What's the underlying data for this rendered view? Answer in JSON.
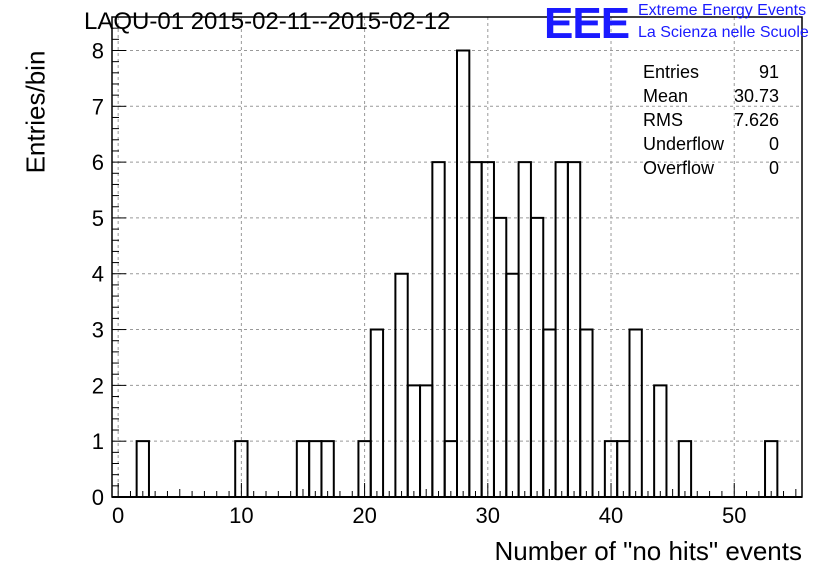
{
  "title": "LAQU-01 2015-02-11--2015-02-12",
  "logo": {
    "mark": "EEE",
    "line1": "Extreme Energy Events",
    "line2": "La Scienza nelle Scuole",
    "color": "#1a1aff"
  },
  "stats": {
    "rows": [
      {
        "label": "Entries",
        "value": "91"
      },
      {
        "label": "Mean",
        "value": "30.73"
      },
      {
        "label": "RMS",
        "value": "7.626"
      },
      {
        "label": "Underflow",
        "value": "0"
      },
      {
        "label": "Overflow",
        "value": "0"
      }
    ]
  },
  "chart_data": {
    "type": "bar",
    "histogram": true,
    "title": "LAQU-01 2015-02-11--2015-02-12",
    "xlabel": "Number of \"no hits\" events",
    "ylabel": "Entries/bin",
    "xlim": [
      -0.5,
      55.5
    ],
    "ylim": [
      0,
      8.6
    ],
    "xticks": [
      0,
      10,
      20,
      30,
      40,
      50
    ],
    "yticks": [
      0,
      1,
      2,
      3,
      4,
      5,
      6,
      7,
      8
    ],
    "grid": true,
    "bin_width": 1,
    "bins": [
      {
        "x": 2,
        "count": 1
      },
      {
        "x": 10,
        "count": 1
      },
      {
        "x": 15,
        "count": 1
      },
      {
        "x": 16,
        "count": 1
      },
      {
        "x": 17,
        "count": 1
      },
      {
        "x": 20,
        "count": 1
      },
      {
        "x": 21,
        "count": 3
      },
      {
        "x": 23,
        "count": 4
      },
      {
        "x": 24,
        "count": 2
      },
      {
        "x": 25,
        "count": 2
      },
      {
        "x": 26,
        "count": 6
      },
      {
        "x": 27,
        "count": 1
      },
      {
        "x": 28,
        "count": 8
      },
      {
        "x": 29,
        "count": 6
      },
      {
        "x": 30,
        "count": 6
      },
      {
        "x": 31,
        "count": 5
      },
      {
        "x": 32,
        "count": 4
      },
      {
        "x": 33,
        "count": 6
      },
      {
        "x": 34,
        "count": 5
      },
      {
        "x": 35,
        "count": 3
      },
      {
        "x": 36,
        "count": 6
      },
      {
        "x": 37,
        "count": 6
      },
      {
        "x": 38,
        "count": 3
      },
      {
        "x": 40,
        "count": 1
      },
      {
        "x": 41,
        "count": 1
      },
      {
        "x": 42,
        "count": 3
      },
      {
        "x": 44,
        "count": 2
      },
      {
        "x": 46,
        "count": 1
      },
      {
        "x": 53,
        "count": 1
      }
    ]
  }
}
